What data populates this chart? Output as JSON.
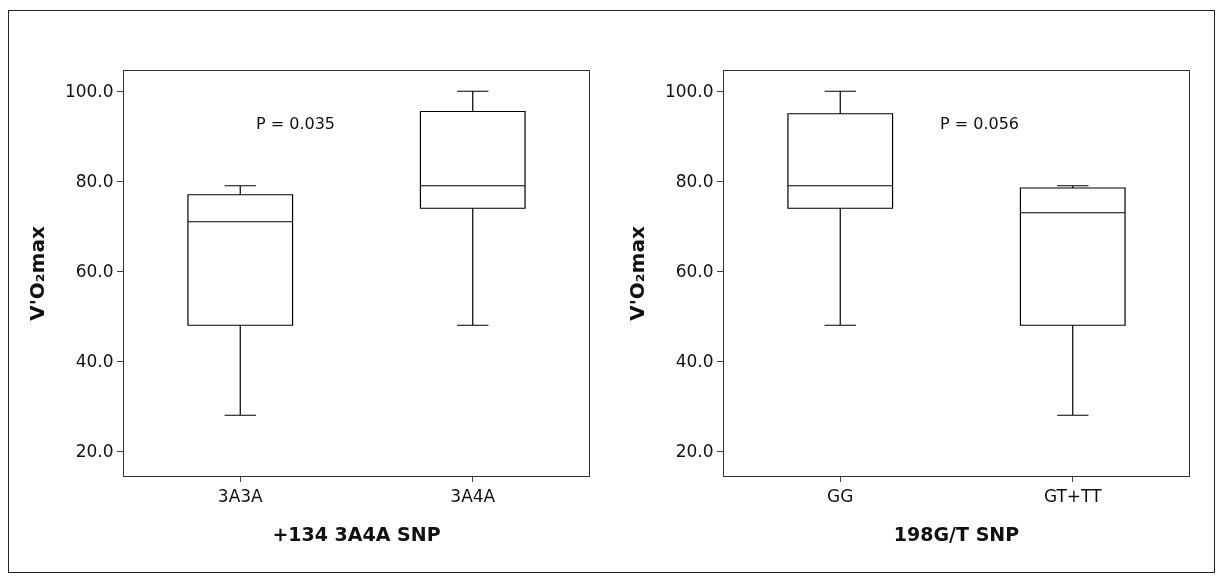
{
  "chart_data": [
    {
      "type": "box",
      "xlabel": "+134 3A4A SNP",
      "ylabel": "V'O₂max",
      "categories": [
        "3A3A",
        "3A4A"
      ],
      "ylim": [
        14.5,
        104.5
      ],
      "yticks": [
        {
          "value": 20,
          "label": "20.0"
        },
        {
          "value": 40,
          "label": "40.0"
        },
        {
          "value": 60,
          "label": "60.0"
        },
        {
          "value": 80,
          "label": "80.0"
        },
        {
          "value": 100,
          "label": "100.0"
        }
      ],
      "grid": false,
      "annotations": [
        "P = 0.035"
      ],
      "series": [
        {
          "color": "#000000",
          "boxes": [
            {
              "low": 28,
              "q1": 48,
              "median": 71,
              "q3": 77,
              "high": 79
            },
            {
              "low": 48,
              "q1": 74,
              "median": 79,
              "q3": 95.5,
              "high": 100
            }
          ]
        }
      ]
    },
    {
      "type": "box",
      "xlabel": "198G/T SNP",
      "ylabel": "V'O₂max",
      "categories": [
        "GG",
        "GT+TT"
      ],
      "ylim": [
        14.5,
        104.5
      ],
      "yticks": [
        {
          "value": 20,
          "label": "20.0"
        },
        {
          "value": 40,
          "label": "40.0"
        },
        {
          "value": 60,
          "label": "60.0"
        },
        {
          "value": 80,
          "label": "80.0"
        },
        {
          "value": 100,
          "label": "100.0"
        }
      ],
      "grid": false,
      "annotations": [
        "P = 0.056"
      ],
      "series": [
        {
          "color": "#000000",
          "boxes": [
            {
              "low": 48,
              "q1": 74,
              "median": 79,
              "q3": 95,
              "high": 100
            },
            {
              "low": 28,
              "q1": 48,
              "median": 73,
              "q3": 78.5,
              "high": 79
            }
          ]
        }
      ]
    }
  ]
}
